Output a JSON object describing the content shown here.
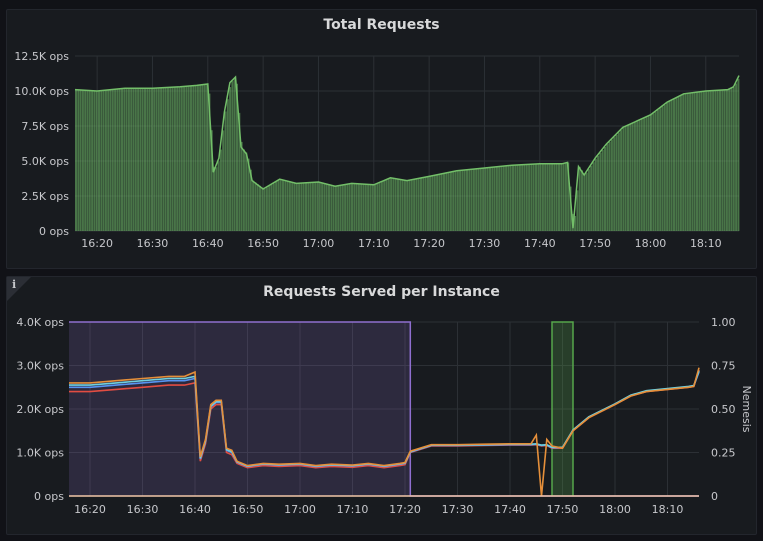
{
  "panels": {
    "total": {
      "title": "Total Requests"
    },
    "instance": {
      "title": "Requests Served per Instance",
      "info_icon": "info-icon"
    }
  },
  "colors": {
    "total_series": "#73bf69",
    "nemesis_series": "#8f6fcf",
    "nemesis_flash": "#56a64b",
    "instance_series": [
      "#e24d42",
      "#5794f2",
      "#6ed0e0",
      "#e58f3a"
    ]
  },
  "chart_data": [
    {
      "type": "bar",
      "title": "Total Requests",
      "xlabel": "",
      "ylabel": "",
      "x_ticks": [
        "16:20",
        "16:30",
        "16:40",
        "16:50",
        "17:00",
        "17:10",
        "17:20",
        "17:30",
        "17:40",
        "17:50",
        "18:00",
        "18:10"
      ],
      "y_ticks": [
        "0 ops",
        "2.5K ops",
        "5.0K ops",
        "7.5K ops",
        "10.0K ops",
        "12.5K ops"
      ],
      "xlim": [
        "16:16",
        "18:16"
      ],
      "ylim": [
        0,
        12500
      ],
      "grid": true,
      "legend": "none",
      "series": [
        {
          "x": [
            "16:16",
            "16:20",
            "16:25",
            "16:30",
            "16:35",
            "16:38",
            "16:40",
            "16:41",
            "16:42",
            "16:43",
            "16:44",
            "16:45",
            "16:46",
            "16:47",
            "16:48",
            "16:50",
            "16:53",
            "16:56",
            "17:00",
            "17:03",
            "17:06",
            "17:10",
            "17:13",
            "17:16",
            "17:20",
            "17:25",
            "17:30",
            "17:35",
            "17:40",
            "17:44",
            "17:45",
            "17:46",
            "17:47",
            "17:48",
            "17:50",
            "17:52",
            "17:55",
            "18:00",
            "18:03",
            "18:06",
            "18:10",
            "18:14",
            "18:15",
            "18:16"
          ],
          "values": [
            10100,
            10000,
            10200,
            10200,
            10300,
            10400,
            10500,
            4200,
            5200,
            8500,
            10600,
            11000,
            6000,
            5500,
            3600,
            3000,
            3700,
            3400,
            3500,
            3200,
            3400,
            3300,
            3800,
            3600,
            3900,
            4300,
            4500,
            4700,
            4800,
            4800,
            4900,
            200,
            4600,
            4000,
            5200,
            6200,
            7400,
            8300,
            9200,
            9800,
            10000,
            10100,
            10300,
            11100
          ]
        }
      ]
    },
    {
      "type": "line",
      "title": "Requests Served per Instance",
      "xlabel": "",
      "ylabel": "",
      "y2label": "Nemesis",
      "x_ticks": [
        "16:20",
        "16:30",
        "16:40",
        "16:50",
        "17:00",
        "17:10",
        "17:20",
        "17:30",
        "17:40",
        "17:50",
        "18:00",
        "18:10"
      ],
      "y_ticks": [
        "0 ops",
        "1.0K ops",
        "2.0K ops",
        "3.0K ops",
        "4.0K ops"
      ],
      "y2_ticks": [
        "0",
        "0.25",
        "0.50",
        "0.75",
        "1.00"
      ],
      "xlim": [
        "16:16",
        "18:16"
      ],
      "ylim": [
        0,
        4000
      ],
      "y2lim": [
        0,
        1
      ],
      "grid": true,
      "legend": "none",
      "x": [
        "16:16",
        "16:20",
        "16:25",
        "16:30",
        "16:35",
        "16:38",
        "16:40",
        "16:41",
        "16:42",
        "16:43",
        "16:44",
        "16:45",
        "16:46",
        "16:47",
        "16:48",
        "16:50",
        "16:53",
        "16:56",
        "17:00",
        "17:03",
        "17:06",
        "17:10",
        "17:13",
        "17:16",
        "17:19",
        "17:20",
        "17:21",
        "17:25",
        "17:30",
        "17:35",
        "17:40",
        "17:44",
        "17:45",
        "17:46",
        "17:47",
        "17:48",
        "17:50",
        "17:52",
        "17:55",
        "18:00",
        "18:03",
        "18:06",
        "18:10",
        "18:14",
        "18:15",
        "18:16"
      ],
      "series": [
        {
          "values": [
            2400,
            2400,
            2450,
            2500,
            2550,
            2550,
            2600,
            800,
            1200,
            2000,
            2100,
            2100,
            1000,
            950,
            750,
            650,
            700,
            680,
            700,
            650,
            680,
            660,
            700,
            650,
            700,
            720,
            1000,
            1150,
            1150,
            1160,
            1170,
            1170,
            1180,
            1150,
            1160,
            1100,
            1100,
            1500,
            1800,
            2100,
            2300,
            2400,
            2450,
            2500,
            2520,
            2900
          ]
        },
        {
          "values": [
            2500,
            2500,
            2550,
            2600,
            2650,
            2650,
            2700,
            850,
            1250,
            2050,
            2150,
            2150,
            1050,
            1000,
            780,
            680,
            730,
            710,
            730,
            680,
            710,
            690,
            730,
            680,
            730,
            750,
            1010,
            1160,
            1160,
            1170,
            1180,
            1180,
            1190,
            1160,
            1170,
            1110,
            1110,
            1510,
            1810,
            2110,
            2310,
            2410,
            2460,
            2510,
            2530,
            2850
          ]
        },
        {
          "values": [
            2550,
            2550,
            2600,
            2650,
            2700,
            2700,
            2750,
            870,
            1270,
            2070,
            2170,
            2170,
            1070,
            1020,
            790,
            690,
            740,
            720,
            740,
            690,
            720,
            700,
            740,
            690,
            740,
            760,
            1020,
            1170,
            1170,
            1180,
            1190,
            1190,
            1200,
            1170,
            1180,
            1120,
            1120,
            1520,
            1820,
            2120,
            2320,
            2420,
            2470,
            2520,
            2540,
            2880
          ]
        },
        {
          "values": [
            2600,
            2600,
            2650,
            2700,
            2750,
            2750,
            2850,
            900,
            1300,
            2100,
            2200,
            2200,
            1100,
            1050,
            800,
            700,
            750,
            730,
            750,
            700,
            730,
            710,
            750,
            700,
            750,
            770,
            1030,
            1180,
            1180,
            1190,
            1200,
            1200,
            1400,
            0,
            1300,
            1150,
            1100,
            1500,
            1800,
            2100,
            2300,
            2400,
            2450,
            2500,
            2520,
            2950
          ]
        }
      ],
      "nemesis": {
        "name": "Nemesis",
        "x": [
          "16:16",
          "17:20",
          "17:21",
          "17:21",
          "18:16"
        ],
        "values": [
          1,
          1,
          1,
          0,
          0
        ],
        "flash": {
          "x": [
            "17:48",
            "17:52"
          ],
          "values": [
            1,
            1
          ]
        }
      }
    }
  ]
}
